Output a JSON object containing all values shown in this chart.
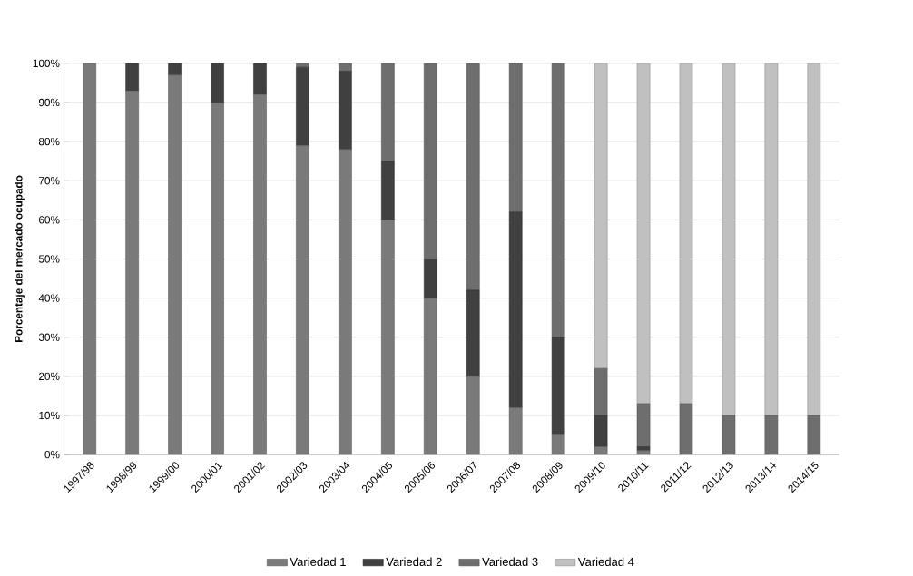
{
  "chart_data": {
    "type": "bar",
    "stacked": true,
    "ylabel": "Porcentaje del mercado ocupado",
    "categories": [
      "1997/98",
      "1998/99",
      "1999/00",
      "2000/01",
      "2001/02",
      "2002/03",
      "2003/04",
      "2004/05",
      "2005/06",
      "2006/07",
      "2007/08",
      "2008/09",
      "2009/10",
      "2010/11",
      "2011/12",
      "2012/13",
      "2013/14",
      "2014/15"
    ],
    "series": [
      {
        "name": "Variedad 1",
        "color": "#7a7a7a",
        "values": [
          100,
          93,
          97,
          90,
          92,
          79,
          78,
          60,
          40,
          20,
          12,
          5,
          2,
          1,
          0,
          0,
          0,
          0
        ]
      },
      {
        "name": "Variedad 2",
        "color": "#404040",
        "values": [
          0,
          7,
          3,
          10,
          8,
          20,
          20,
          15,
          10,
          22,
          50,
          25,
          8,
          1,
          0,
          0,
          0,
          0
        ]
      },
      {
        "name": "Variedad 3",
        "color": "#6e6e6e",
        "values": [
          0,
          0,
          0,
          0,
          0,
          1,
          2,
          25,
          50,
          58,
          38,
          70,
          12,
          11,
          13,
          10,
          10,
          10
        ]
      },
      {
        "name": "Variedad 4",
        "color": "#c0c0c0",
        "values": [
          0,
          0,
          0,
          0,
          0,
          0,
          0,
          0,
          0,
          0,
          0,
          0,
          78,
          87,
          87,
          90,
          90,
          90
        ]
      }
    ],
    "ylim": [
      0,
      100
    ],
    "yticks": [
      {
        "value": 0,
        "label": "0%"
      },
      {
        "value": 10,
        "label": "10%"
      },
      {
        "value": 20,
        "label": "20%"
      },
      {
        "value": 30,
        "label": "30%"
      },
      {
        "value": 40,
        "label": "40%"
      },
      {
        "value": 50,
        "label": "50%"
      },
      {
        "value": 60,
        "label": "60%"
      },
      {
        "value": 70,
        "label": "70%"
      },
      {
        "value": 80,
        "label": "80%"
      },
      {
        "value": 90,
        "label": "90%"
      },
      {
        "value": 100,
        "label": "100%"
      }
    ],
    "grid": "y",
    "legend": "bottom"
  }
}
